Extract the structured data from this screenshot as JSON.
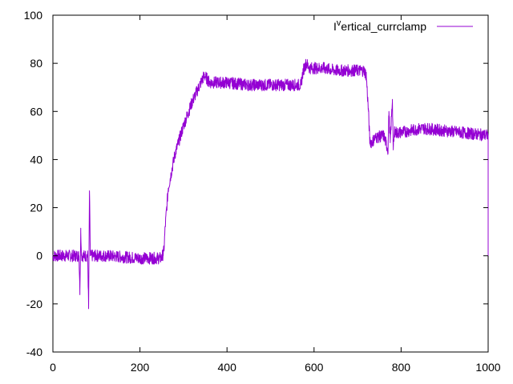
{
  "chart_data": {
    "type": "line",
    "title": "",
    "xlabel": "",
    "ylabel": "",
    "xlim": [
      0,
      1000
    ],
    "ylim": [
      -40,
      100
    ],
    "x_ticks": [
      0,
      200,
      400,
      600,
      800,
      1000
    ],
    "y_ticks": [
      -40,
      -20,
      0,
      20,
      40,
      60,
      80,
      100
    ],
    "grid": false,
    "legend_position": "top-right",
    "series": [
      {
        "name": "I",
        "name_superscript": "v",
        "name_suffix": "ertical_currclamp",
        "color": "#9400d3",
        "x": [
          0,
          60,
          62,
          64,
          66,
          80,
          82,
          84,
          86,
          120,
          200,
          250,
          255,
          258,
          265,
          280,
          300,
          320,
          340,
          348,
          360,
          400,
          450,
          500,
          550,
          570,
          575,
          582,
          590,
          620,
          650,
          700,
          715,
          720,
          725,
          728,
          732,
          740,
          760,
          770,
          772,
          775,
          780,
          782,
          785,
          790,
          820,
          850,
          900,
          950,
          1000
        ],
        "y": [
          0,
          0,
          -14,
          10,
          0,
          0,
          -22,
          27,
          0,
          0,
          -1,
          -1,
          2,
          12,
          28,
          42,
          54,
          64,
          72,
          75,
          72,
          72,
          71,
          71,
          71,
          71,
          77,
          80,
          78,
          78,
          77,
          77,
          77,
          75,
          60,
          48,
          47,
          49,
          50,
          44,
          60,
          47,
          65,
          44,
          52,
          51,
          52,
          53,
          52,
          51,
          50
        ],
        "noise_band": 2.5
      }
    ]
  }
}
